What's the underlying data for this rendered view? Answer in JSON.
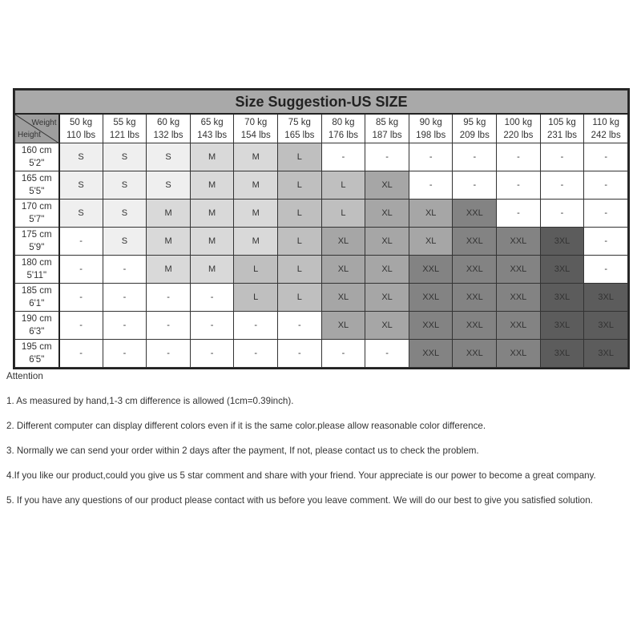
{
  "title": "Size Suggestion-US SIZE",
  "corner": {
    "weight_label": "Weight",
    "height_label": "Height"
  },
  "weights": [
    {
      "kg": "50 kg",
      "lbs": "110 lbs"
    },
    {
      "kg": "55 kg",
      "lbs": "121 lbs"
    },
    {
      "kg": "60 kg",
      "lbs": "132 lbs"
    },
    {
      "kg": "65 kg",
      "lbs": "143 lbs"
    },
    {
      "kg": "70 kg",
      "lbs": "154 lbs"
    },
    {
      "kg": "75 kg",
      "lbs": "165 lbs"
    },
    {
      "kg": "80 kg",
      "lbs": "176 lbs"
    },
    {
      "kg": "85 kg",
      "lbs": "187 lbs"
    },
    {
      "kg": "90 kg",
      "lbs": "198 lbs"
    },
    {
      "kg": "95 kg",
      "lbs": "209 lbs"
    },
    {
      "kg": "100 kg",
      "lbs": "220 lbs"
    },
    {
      "kg": "105 kg",
      "lbs": "231 lbs"
    },
    {
      "kg": "110 kg",
      "lbs": "242 lbs"
    }
  ],
  "rows": [
    {
      "cm": "160 cm",
      "ft": "5'2\"",
      "sizes": [
        "S",
        "S",
        "S",
        "M",
        "M",
        "L",
        "-",
        "-",
        "-",
        "-",
        "-",
        "-",
        "-"
      ]
    },
    {
      "cm": "165 cm",
      "ft": "5'5\"",
      "sizes": [
        "S",
        "S",
        "S",
        "M",
        "M",
        "L",
        "L",
        "XL",
        "-",
        "-",
        "-",
        "-",
        "-"
      ]
    },
    {
      "cm": "170 cm",
      "ft": "5'7\"",
      "sizes": [
        "S",
        "S",
        "M",
        "M",
        "M",
        "L",
        "L",
        "XL",
        "XL",
        "XXL",
        "-",
        "-",
        "-"
      ]
    },
    {
      "cm": "175 cm",
      "ft": "5'9\"",
      "sizes": [
        "-",
        "S",
        "M",
        "M",
        "M",
        "L",
        "XL",
        "XL",
        "XL",
        "XXL",
        "XXL",
        "3XL",
        "-"
      ]
    },
    {
      "cm": "180 cm",
      "ft": "5'11\"",
      "sizes": [
        "-",
        "-",
        "M",
        "M",
        "L",
        "L",
        "XL",
        "XL",
        "XXL",
        "XXL",
        "XXL",
        "3XL",
        "-"
      ]
    },
    {
      "cm": "185 cm",
      "ft": "6'1\"",
      "sizes": [
        "-",
        "-",
        "-",
        "-",
        "L",
        "L",
        "XL",
        "XL",
        "XXL",
        "XXL",
        "XXL",
        "3XL",
        "3XL"
      ]
    },
    {
      "cm": "190 cm",
      "ft": "6'3\"",
      "sizes": [
        "-",
        "-",
        "-",
        "-",
        "-",
        "-",
        "XL",
        "XL",
        "XXL",
        "XXL",
        "XXL",
        "3XL",
        "3XL"
      ]
    },
    {
      "cm": "195 cm",
      "ft": "6'5\"",
      "sizes": [
        "-",
        "-",
        "-",
        "-",
        "-",
        "-",
        "-",
        "-",
        "XXL",
        "XXL",
        "XXL",
        "3XL",
        "3XL"
      ]
    }
  ],
  "size_colors": {
    "S": "#efefef",
    "M": "#d9d9d9",
    "L": "#bfbfbf",
    "XL": "#a6a6a6",
    "XXL": "#838383",
    "3XL": "#5c5c5c",
    "-": "#ffffff"
  },
  "notes": {
    "heading": "Attention",
    "items": [
      "1. As measured by hand,1-3 cm difference is allowed (1cm=0.39inch).",
      "2. Different computer can display different colors even if it is the same color.please allow reasonable color difference.",
      "3. Normally we can send your order within 2 days after the payment, If not, please contact us to check the problem.",
      "4.If you like our product,could you give us 5 star comment and share with your friend. Your appreciate is our power to become a great company.",
      "5. If you have any questions of our product please contact with us before you leave comment. We will do our best to give you satisfied solution."
    ]
  }
}
